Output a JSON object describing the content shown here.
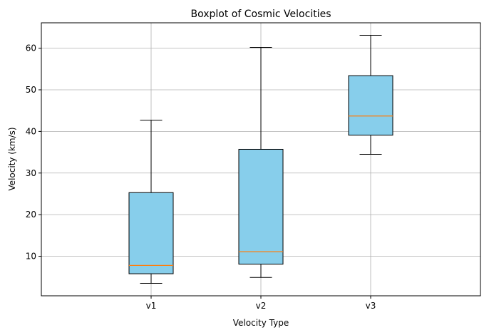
{
  "chart_data": {
    "type": "box",
    "title": "Boxplot of Cosmic Velocities",
    "xlabel": "Velocity Type",
    "ylabel": "Velocity (km/s)",
    "categories": [
      "v1",
      "v2",
      "v3"
    ],
    "boxes": [
      {
        "name": "v1",
        "whisker_low": 3.5,
        "q1": 5.8,
        "median": 7.8,
        "q3": 25.3,
        "whisker_high": 42.7
      },
      {
        "name": "v2",
        "whisker_low": 4.9,
        "q1": 8.1,
        "median": 11.1,
        "q3": 35.7,
        "whisker_high": 60.2
      },
      {
        "name": "v3",
        "whisker_low": 34.5,
        "q1": 39.1,
        "median": 43.7,
        "q3": 53.4,
        "whisker_high": 63.1
      }
    ],
    "ylim": [
      0.5,
      66.1
    ],
    "yticks": [
      10,
      20,
      30,
      40,
      50,
      60
    ],
    "grid": true,
    "colors": {
      "box_fill": "#87ceeb",
      "median": "#ff7f0e",
      "grid": "#b0b0b0",
      "edge": "#000000"
    }
  }
}
